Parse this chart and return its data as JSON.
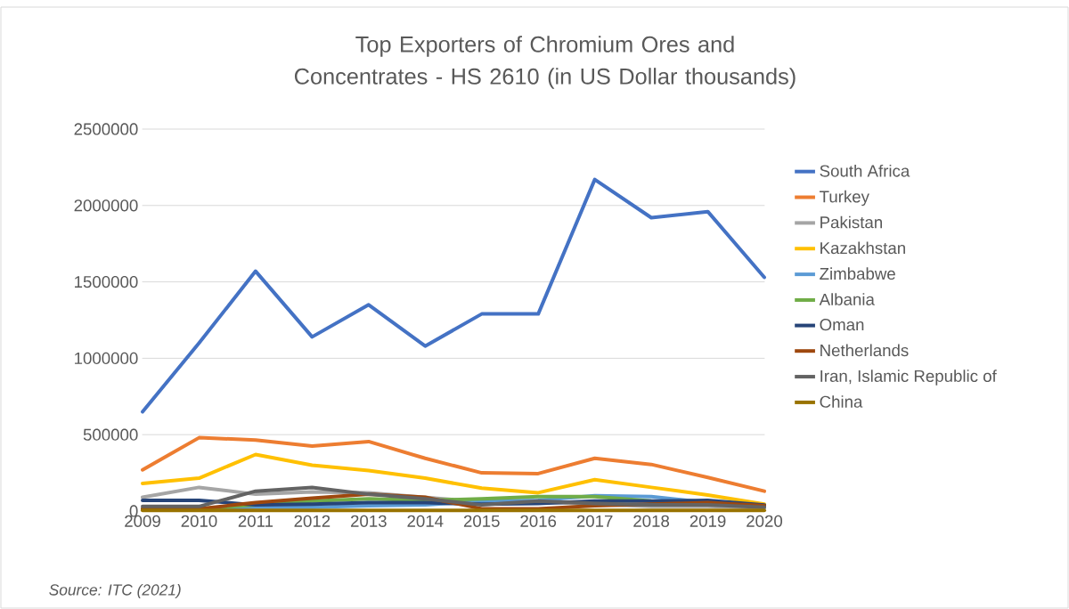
{
  "chart_data": {
    "type": "line",
    "title": "Top Exporters of Chromium Ores and Concentrates - HS 2610 (in US Dollar thousands)",
    "categories": [
      "2009",
      "2010",
      "2011",
      "2012",
      "2013",
      "2014",
      "2015",
      "2016",
      "2017",
      "2018",
      "2019",
      "2020"
    ],
    "series": [
      {
        "name": "South Africa",
        "color": "#4472c4",
        "values": [
          650000,
          1100000,
          1570000,
          1140000,
          1350000,
          1080000,
          1290000,
          1290000,
          2170000,
          1920000,
          1960000,
          1530000
        ]
      },
      {
        "name": "Turkey",
        "color": "#ed7d31",
        "values": [
          270000,
          480000,
          465000,
          425000,
          455000,
          345000,
          250000,
          245000,
          345000,
          305000,
          220000,
          130000
        ]
      },
      {
        "name": "Pakistan",
        "color": "#a5a5a5",
        "values": [
          90000,
          155000,
          110000,
          125000,
          120000,
          90000,
          60000,
          60000,
          null,
          30000,
          30000,
          20000
        ]
      },
      {
        "name": "Kazakhstan",
        "color": "#ffc000",
        "values": [
          180000,
          215000,
          370000,
          300000,
          265000,
          215000,
          150000,
          120000,
          205000,
          155000,
          105000,
          45000
        ]
      },
      {
        "name": "Zimbabwe",
        "color": "#5b9bd5",
        "values": [
          15000,
          15000,
          25000,
          25000,
          35000,
          40000,
          65000,
          70000,
          100000,
          95000,
          55000,
          25000
        ]
      },
      {
        "name": "Albania",
        "color": "#70ad47",
        "values": [
          15000,
          15000,
          40000,
          65000,
          80000,
          70000,
          80000,
          95000,
          95000,
          65000,
          55000,
          35000
        ]
      },
      {
        "name": "Oman",
        "color": "#264478",
        "values": [
          70000,
          70000,
          40000,
          45000,
          55000,
          55000,
          45000,
          50000,
          65000,
          65000,
          70000,
          40000
        ]
      },
      {
        "name": "Netherlands",
        "color": "#9e480e",
        "values": [
          15000,
          15000,
          55000,
          85000,
          110000,
          90000,
          15000,
          15000,
          35000,
          45000,
          55000,
          35000
        ]
      },
      {
        "name": "Iran, Islamic Republic of",
        "color": "#636363",
        "values": [
          30000,
          30000,
          130000,
          155000,
          110000,
          80000,
          40000,
          65000,
          50000,
          40000,
          40000,
          25000
        ]
      },
      {
        "name": "China",
        "color": "#997300",
        "values": [
          5000,
          5000,
          5000,
          5000,
          5000,
          5000,
          5000,
          5000,
          5000,
          5000,
          5000,
          5000
        ]
      }
    ],
    "ylim": [
      0,
      2500000
    ],
    "yticks": [
      0,
      500000,
      1000000,
      1500000,
      2000000,
      2500000
    ],
    "grid": "y",
    "legend": "right",
    "marker": "none",
    "line_style": "solid",
    "annotations": [
      "Source: ITC (2021)"
    ]
  }
}
